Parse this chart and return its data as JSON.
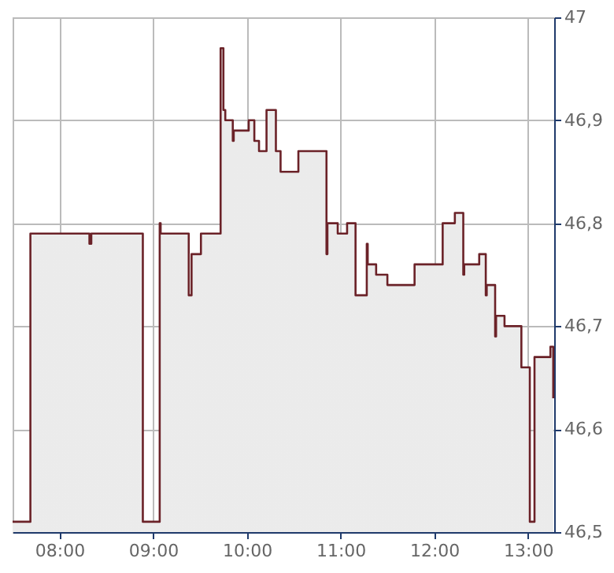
{
  "chart_data": {
    "type": "step",
    "x": [
      7.5,
      7.69,
      8.32,
      8.34,
      8.89,
      9.07,
      9.08,
      9.38,
      9.41,
      9.51,
      9.72,
      9.75,
      9.77,
      9.85,
      9.86,
      10.02,
      10.08,
      10.13,
      10.21,
      10.31,
      10.36,
      10.55,
      10.85,
      10.86,
      10.97,
      11.07,
      11.16,
      11.28,
      11.29,
      11.38,
      11.5,
      11.79,
      12.09,
      12.22,
      12.31,
      12.32,
      12.48,
      12.55,
      12.56,
      12.65,
      12.66,
      12.75,
      12.93,
      13.02,
      13.07,
      13.24,
      13.27
    ],
    "series": [
      {
        "color": "#6b2228",
        "values": [
          46.51,
          46.79,
          46.78,
          46.79,
          46.51,
          46.8,
          46.79,
          46.73,
          46.77,
          46.79,
          46.97,
          46.91,
          46.9,
          46.88,
          46.89,
          46.9,
          46.88,
          46.87,
          46.91,
          46.87,
          46.85,
          46.87,
          46.77,
          46.8,
          46.79,
          46.8,
          46.73,
          46.78,
          46.76,
          46.75,
          46.74,
          46.76,
          46.8,
          46.81,
          46.75,
          46.76,
          46.77,
          46.73,
          46.74,
          46.69,
          46.71,
          46.7,
          46.66,
          46.51,
          46.67,
          46.68,
          46.63
        ]
      }
    ],
    "xlim": [
      7.5,
      13.28
    ],
    "xticks": [
      {
        "value": 8,
        "label": "08:00"
      },
      {
        "value": 9,
        "label": "09:00"
      },
      {
        "value": 10,
        "label": "10:00"
      },
      {
        "value": 11,
        "label": "11:00"
      },
      {
        "value": 12,
        "label": "12:00"
      },
      {
        "value": 13,
        "label": "13:00"
      }
    ],
    "ylim": [
      46.5,
      47
    ],
    "yticks": [
      {
        "value": 46.5,
        "label": "46,5"
      },
      {
        "value": 46.6,
        "label": "46,6"
      },
      {
        "value": 46.7,
        "label": "46,7"
      },
      {
        "value": 46.8,
        "label": "46,8"
      },
      {
        "value": 46.9,
        "label": "46,9"
      },
      {
        "value": 47,
        "label": "47"
      }
    ],
    "grid": true,
    "marker": "none",
    "line_style": "solid"
  }
}
